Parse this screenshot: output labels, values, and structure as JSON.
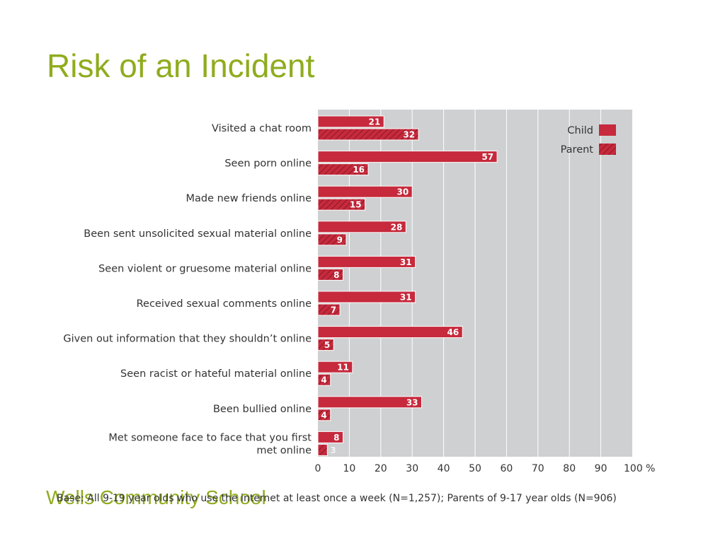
{
  "slide": {
    "title": "Risk of an Incident",
    "footer_partial": "Wells Community School",
    "base_note": "Base: All 9-19 year olds who use the internet at least once a week (N=1,257); Parents of 9-17 year olds (N=906)"
  },
  "colors": {
    "title": "#8fac1e",
    "plot_background": "#cfd0d2",
    "child_bar": "#c62a3c",
    "parent_bar": "#c62a3c",
    "gridline": "#ffffff",
    "label_text": "#333333"
  },
  "chart_data": {
    "type": "bar",
    "orientation": "horizontal",
    "categories": [
      "Visited a chat room",
      "Seen porn online",
      "Made new friends online",
      "Been sent unsolicited sexual material online",
      "Seen violent or gruesome material online",
      "Received sexual comments online",
      "Given out information that they shouldn’t online",
      "Seen racist or hateful material online",
      "Been bullied online",
      "Met someone face to face that you first met online"
    ],
    "category_lines": [
      [
        "Visited a chat room"
      ],
      [
        "Seen porn online"
      ],
      [
        "Made new friends online"
      ],
      [
        "Been sent unsolicited sexual material online"
      ],
      [
        "Seen violent or gruesome material online"
      ],
      [
        "Received sexual comments online"
      ],
      [
        "Given out information that they shouldn’t online"
      ],
      [
        "Seen racist or hateful material online"
      ],
      [
        "Been bullied online"
      ],
      [
        "Met someone face to face that you first",
        "met online"
      ]
    ],
    "series": [
      {
        "name": "Child",
        "pattern": "solid",
        "values": [
          21,
          57,
          30,
          28,
          31,
          31,
          46,
          11,
          33,
          8
        ]
      },
      {
        "name": "Parent",
        "pattern": "hatched",
        "values": [
          32,
          16,
          15,
          9,
          8,
          7,
          5,
          4,
          4,
          3
        ]
      }
    ],
    "x_ticks": [
      "0",
      "10",
      "20",
      "30",
      "40",
      "50",
      "60",
      "70",
      "80",
      "90",
      "100 %"
    ],
    "xlim": [
      0,
      100
    ],
    "grid": true,
    "legend_position": "top-right"
  }
}
